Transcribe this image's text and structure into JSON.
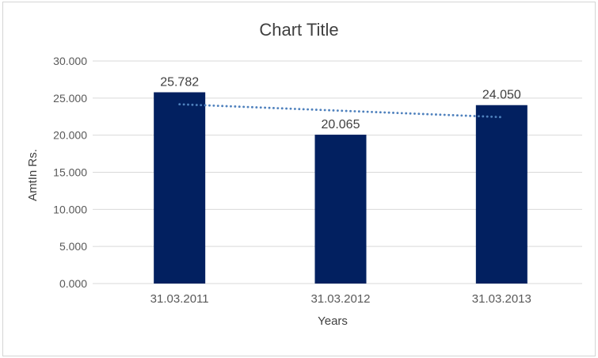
{
  "chart_data": {
    "type": "bar",
    "title": "Chart Title",
    "xlabel": "Years",
    "ylabel": "AmtIn Rs.",
    "categories": [
      "31.03.2011",
      "31.03.2012",
      "31.03.2013"
    ],
    "values": [
      25.782,
      20.065,
      24.05
    ],
    "data_labels": [
      "25.782",
      "20.065",
      "24.050"
    ],
    "y_ticks": [
      "0.000",
      "5.000",
      "10.000",
      "15.000",
      "20.000",
      "25.000",
      "30.000"
    ],
    "ylim": [
      0,
      30
    ],
    "y_tick_step": 5,
    "grid": true,
    "legend": "none",
    "trendline": {
      "type": "linear",
      "style": "dotted"
    },
    "colors": {
      "bar": "#022060",
      "trendline": "#4f81bd",
      "gridline": "#d9d9d9",
      "border": "#d5d5d5",
      "title_text": "#404040",
      "axis_text": "#595959",
      "data_label_text": "#404040",
      "background": "#ffffff"
    }
  }
}
